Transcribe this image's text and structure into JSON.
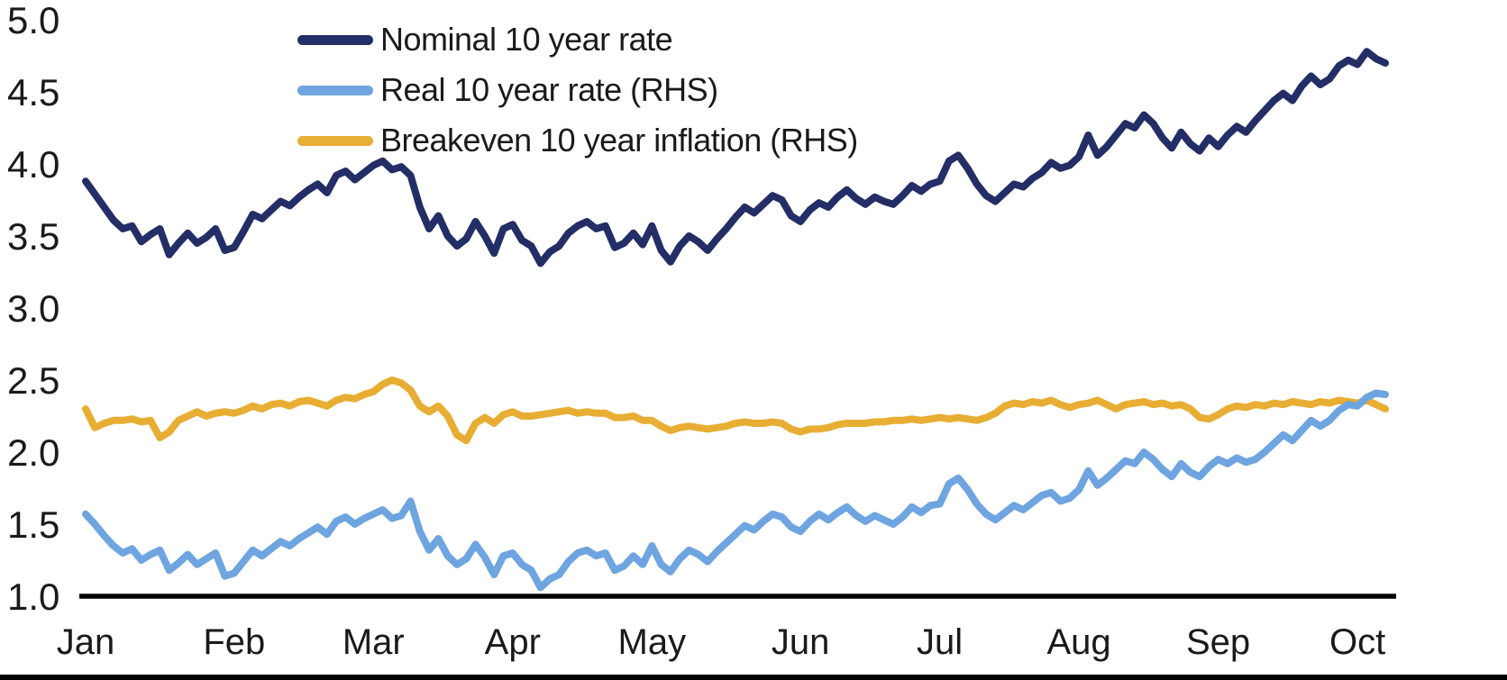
{
  "chart_data": {
    "type": "line",
    "title": "",
    "xlabel": "",
    "ylabel": "",
    "x_axis": {
      "labels": [
        "Jan",
        "Feb",
        "Mar",
        "Apr",
        "May",
        "Jun",
        "Jul",
        "Aug",
        "Sep",
        "Oct"
      ],
      "month_start_indices": [
        0,
        16,
        31,
        46,
        61,
        77,
        92,
        107,
        122,
        137
      ]
    },
    "y_axis": {
      "tick_labels": [
        "5.0",
        "4.5",
        "4.0",
        "3.5",
        "3.0",
        "2.5",
        "2.0",
        "1.5",
        "1.0"
      ],
      "tick_values": [
        5.0,
        4.5,
        4.0,
        3.5,
        3.0,
        2.5,
        2.0,
        1.5,
        1.0
      ],
      "min": 1.0,
      "max": 5.0,
      "grid": false
    },
    "legend_position": "top-left-inset",
    "colors": {
      "nominal": "#232d66",
      "real": "#6ea4e0",
      "breakeven": "#e8ad33",
      "axis": "#000000",
      "text": "#1a1a1a"
    },
    "series": [
      {
        "name": "Nominal 10 year rate",
        "axis": "LHS",
        "color": "#232d66",
        "values": [
          3.88,
          3.79,
          3.7,
          3.61,
          3.55,
          3.57,
          3.46,
          3.51,
          3.55,
          3.37,
          3.45,
          3.52,
          3.45,
          3.49,
          3.55,
          3.4,
          3.42,
          3.53,
          3.65,
          3.62,
          3.68,
          3.74,
          3.71,
          3.77,
          3.82,
          3.86,
          3.8,
          3.92,
          3.95,
          3.89,
          3.94,
          3.99,
          4.02,
          3.96,
          3.98,
          3.92,
          3.7,
          3.55,
          3.64,
          3.5,
          3.43,
          3.48,
          3.6,
          3.5,
          3.38,
          3.55,
          3.58,
          3.47,
          3.43,
          3.31,
          3.39,
          3.43,
          3.52,
          3.57,
          3.6,
          3.55,
          3.57,
          3.42,
          3.45,
          3.52,
          3.44,
          3.57,
          3.4,
          3.32,
          3.43,
          3.5,
          3.46,
          3.4,
          3.48,
          3.55,
          3.63,
          3.7,
          3.66,
          3.72,
          3.78,
          3.75,
          3.64,
          3.6,
          3.68,
          3.73,
          3.7,
          3.77,
          3.82,
          3.76,
          3.72,
          3.77,
          3.74,
          3.72,
          3.78,
          3.85,
          3.81,
          3.86,
          3.88,
          4.02,
          4.06,
          3.97,
          3.86,
          3.78,
          3.74,
          3.8,
          3.86,
          3.84,
          3.9,
          3.94,
          4.01,
          3.97,
          3.99,
          4.05,
          4.2,
          4.06,
          4.12,
          4.2,
          4.28,
          4.25,
          4.34,
          4.28,
          4.18,
          4.11,
          4.22,
          4.14,
          4.09,
          4.18,
          4.12,
          4.2,
          4.26,
          4.22,
          4.3,
          4.37,
          4.44,
          4.49,
          4.44,
          4.54,
          4.61,
          4.55,
          4.59,
          4.68,
          4.72,
          4.69,
          4.78,
          4.73,
          4.7
        ]
      },
      {
        "name": "Real 10 year rate (RHS)",
        "axis": "RHS",
        "color": "#6ea4e0",
        "values": [
          1.57,
          1.5,
          1.42,
          1.35,
          1.3,
          1.33,
          1.25,
          1.29,
          1.32,
          1.18,
          1.23,
          1.29,
          1.22,
          1.26,
          1.3,
          1.14,
          1.16,
          1.24,
          1.32,
          1.28,
          1.33,
          1.38,
          1.35,
          1.4,
          1.44,
          1.48,
          1.43,
          1.52,
          1.55,
          1.5,
          1.54,
          1.57,
          1.6,
          1.54,
          1.56,
          1.66,
          1.45,
          1.32,
          1.4,
          1.28,
          1.22,
          1.26,
          1.36,
          1.27,
          1.15,
          1.28,
          1.3,
          1.22,
          1.18,
          1.06,
          1.12,
          1.15,
          1.24,
          1.3,
          1.32,
          1.28,
          1.3,
          1.18,
          1.21,
          1.28,
          1.22,
          1.35,
          1.22,
          1.17,
          1.26,
          1.32,
          1.29,
          1.24,
          1.31,
          1.37,
          1.43,
          1.49,
          1.46,
          1.52,
          1.57,
          1.55,
          1.48,
          1.45,
          1.52,
          1.57,
          1.53,
          1.58,
          1.62,
          1.56,
          1.52,
          1.56,
          1.53,
          1.5,
          1.55,
          1.62,
          1.58,
          1.63,
          1.64,
          1.78,
          1.82,
          1.74,
          1.64,
          1.57,
          1.53,
          1.58,
          1.63,
          1.6,
          1.65,
          1.7,
          1.72,
          1.66,
          1.68,
          1.74,
          1.87,
          1.77,
          1.82,
          1.88,
          1.94,
          1.92,
          2.0,
          1.95,
          1.88,
          1.83,
          1.92,
          1.86,
          1.83,
          1.9,
          1.95,
          1.92,
          1.96,
          1.93,
          1.95,
          2.0,
          2.06,
          2.12,
          2.08,
          2.15,
          2.22,
          2.18,
          2.22,
          2.29,
          2.33,
          2.32,
          2.38,
          2.41,
          2.4
        ]
      },
      {
        "name": "Breakeven 10 year inflation (RHS)",
        "axis": "RHS",
        "color": "#e8ad33",
        "values": [
          2.3,
          2.17,
          2.2,
          2.22,
          2.22,
          2.23,
          2.21,
          2.22,
          2.1,
          2.14,
          2.22,
          2.25,
          2.28,
          2.25,
          2.27,
          2.28,
          2.27,
          2.29,
          2.32,
          2.3,
          2.33,
          2.34,
          2.32,
          2.35,
          2.36,
          2.34,
          2.32,
          2.36,
          2.38,
          2.37,
          2.4,
          2.42,
          2.47,
          2.5,
          2.48,
          2.43,
          2.32,
          2.28,
          2.32,
          2.25,
          2.12,
          2.08,
          2.2,
          2.24,
          2.2,
          2.26,
          2.28,
          2.25,
          2.25,
          2.26,
          2.27,
          2.28,
          2.29,
          2.27,
          2.28,
          2.27,
          2.27,
          2.24,
          2.24,
          2.25,
          2.22,
          2.22,
          2.18,
          2.15,
          2.17,
          2.18,
          2.17,
          2.16,
          2.17,
          2.18,
          2.2,
          2.21,
          2.2,
          2.2,
          2.21,
          2.2,
          2.16,
          2.14,
          2.16,
          2.16,
          2.17,
          2.19,
          2.2,
          2.2,
          2.2,
          2.21,
          2.21,
          2.22,
          2.22,
          2.23,
          2.22,
          2.23,
          2.24,
          2.23,
          2.24,
          2.23,
          2.22,
          2.24,
          2.27,
          2.32,
          2.34,
          2.33,
          2.35,
          2.34,
          2.36,
          2.33,
          2.31,
          2.33,
          2.34,
          2.36,
          2.33,
          2.3,
          2.33,
          2.34,
          2.35,
          2.33,
          2.34,
          2.32,
          2.33,
          2.3,
          2.24,
          2.23,
          2.26,
          2.3,
          2.32,
          2.31,
          2.33,
          2.32,
          2.34,
          2.33,
          2.35,
          2.34,
          2.33,
          2.35,
          2.34,
          2.36,
          2.35,
          2.34,
          2.36,
          2.33,
          2.3
        ]
      }
    ]
  }
}
